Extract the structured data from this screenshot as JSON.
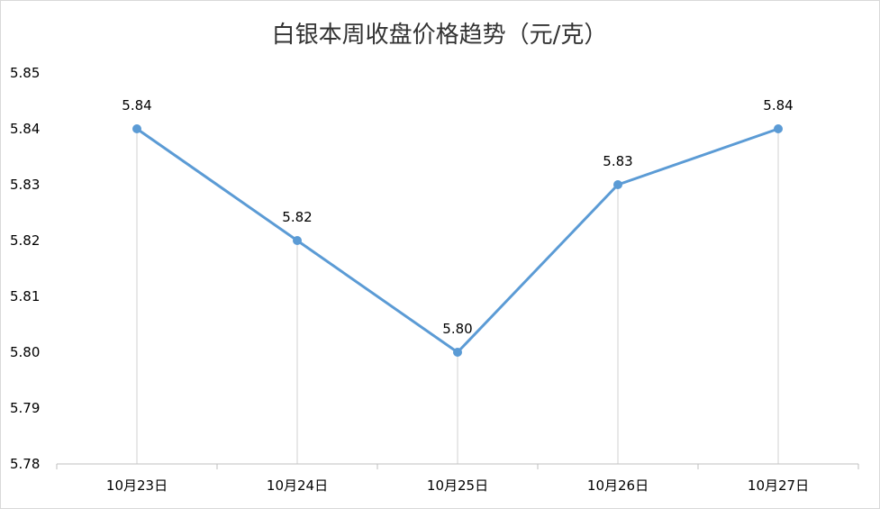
{
  "chart_data": {
    "type": "line",
    "title": "白银本周收盘价格趋势（元/克）",
    "categories": [
      "10月23日",
      "10月24日",
      "10月25日",
      "10月26日",
      "10月27日"
    ],
    "series": [
      {
        "values": [
          5.84,
          5.82,
          5.8,
          5.83,
          5.84
        ],
        "data_labels": [
          "5.84",
          "5.82",
          "5.80",
          "5.83",
          "5.84"
        ]
      }
    ],
    "ylim": [
      5.78,
      5.85
    ],
    "yticks": [
      5.78,
      5.79,
      5.8,
      5.81,
      5.82,
      5.83,
      5.84,
      5.85
    ],
    "ytick_labels": [
      "5.78",
      "5.79",
      "5.80",
      "5.81",
      "5.82",
      "5.83",
      "5.84",
      "5.85"
    ],
    "xlabel": "",
    "ylabel": "",
    "grid": false,
    "drop_lines": true,
    "legend": "none",
    "colors": {
      "line": "#5b9bd5",
      "drop_line": "#d9d9d9",
      "axis": "#bfbfbf",
      "text": "#000000",
      "title": "#333333"
    }
  }
}
